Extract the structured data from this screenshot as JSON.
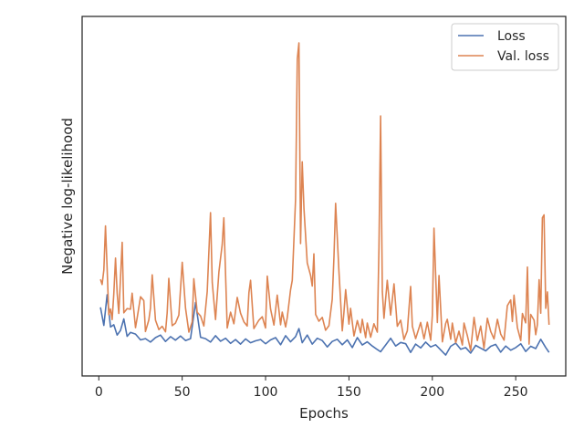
{
  "chart_data": {
    "type": "line",
    "xlabel": "Epochs",
    "ylabel": "Negative log-likelihood",
    "xlim": [
      -10,
      280
    ],
    "ylim": [
      0,
      100
    ],
    "xticks": [
      0,
      50,
      100,
      150,
      200,
      250
    ],
    "yticks_shown": false,
    "grid": false,
    "legend_position": "top-right",
    "series": [
      {
        "name": "Loss",
        "color": "#4c72b0",
        "points": [
          [
            1,
            17.9
          ],
          [
            3,
            12.3
          ],
          [
            5,
            21.8
          ],
          [
            7,
            11.8
          ],
          [
            9,
            12.5
          ],
          [
            11,
            9.3
          ],
          [
            13,
            10.7
          ],
          [
            15,
            14.3
          ],
          [
            17,
            8.9
          ],
          [
            19,
            10.1
          ],
          [
            22,
            9.6
          ],
          [
            25,
            7.8
          ],
          [
            28,
            8.2
          ],
          [
            31,
            7.1
          ],
          [
            34,
            8.5
          ],
          [
            37,
            9.3
          ],
          [
            40,
            7.3
          ],
          [
            43,
            8.8
          ],
          [
            46,
            7.7
          ],
          [
            49,
            9.0
          ],
          [
            52,
            7.6
          ],
          [
            55,
            8.2
          ],
          [
            58,
            19.4
          ],
          [
            61,
            8.6
          ],
          [
            64,
            8.2
          ],
          [
            67,
            7.1
          ],
          [
            70,
            9.1
          ],
          [
            73,
            7.4
          ],
          [
            76,
            8.3
          ],
          [
            79,
            6.7
          ],
          [
            82,
            7.9
          ],
          [
            85,
            6.5
          ],
          [
            88,
            8.1
          ],
          [
            91,
            6.9
          ],
          [
            94,
            7.5
          ],
          [
            97,
            7.9
          ],
          [
            100,
            6.6
          ],
          [
            103,
            7.8
          ],
          [
            106,
            8.5
          ],
          [
            109,
            6.3
          ],
          [
            112,
            9.1
          ],
          [
            115,
            7.2
          ],
          [
            118,
            8.8
          ],
          [
            120,
            11.3
          ],
          [
            122,
            6.9
          ],
          [
            125,
            9.3
          ],
          [
            128,
            6.5
          ],
          [
            131,
            8.3
          ],
          [
            134,
            7.6
          ],
          [
            137,
            5.6
          ],
          [
            140,
            7.3
          ],
          [
            143,
            8.0
          ],
          [
            146,
            6.3
          ],
          [
            149,
            7.8
          ],
          [
            152,
            5.4
          ],
          [
            155,
            8.5
          ],
          [
            158,
            6.2
          ],
          [
            161,
            7.2
          ],
          [
            164,
            5.9
          ],
          [
            167,
            4.8
          ],
          [
            169,
            4.1
          ],
          [
            172,
            6.2
          ],
          [
            175,
            8.3
          ],
          [
            178,
            5.9
          ],
          [
            181,
            7.0
          ],
          [
            184,
            6.6
          ],
          [
            187,
            3.9
          ],
          [
            190,
            6.5
          ],
          [
            193,
            5.3
          ],
          [
            196,
            7.1
          ],
          [
            199,
            5.6
          ],
          [
            202,
            6.3
          ],
          [
            205,
            4.7
          ],
          [
            208,
            3.1
          ],
          [
            211,
            5.8
          ],
          [
            214,
            6.8
          ],
          [
            217,
            4.9
          ],
          [
            220,
            5.4
          ],
          [
            223,
            3.7
          ],
          [
            226,
            6.1
          ],
          [
            229,
            5.2
          ],
          [
            232,
            4.4
          ],
          [
            235,
            5.8
          ],
          [
            238,
            6.4
          ],
          [
            241,
            4.0
          ],
          [
            244,
            5.9
          ],
          [
            247,
            4.6
          ],
          [
            250,
            5.4
          ],
          [
            253,
            6.6
          ],
          [
            256,
            4.2
          ],
          [
            259,
            5.8
          ],
          [
            262,
            5.1
          ],
          [
            265,
            8.0
          ],
          [
            268,
            5.4
          ],
          [
            270,
            3.9
          ]
        ]
      },
      {
        "name": "Val. loss",
        "color": "#dd8452",
        "points": [
          [
            1,
            26.6
          ],
          [
            2,
            25.0
          ],
          [
            3,
            29.5
          ],
          [
            4,
            43.2
          ],
          [
            5,
            30.0
          ],
          [
            6,
            15.6
          ],
          [
            7,
            17.4
          ],
          [
            8,
            14.1
          ],
          [
            9,
            22.0
          ],
          [
            10,
            33.2
          ],
          [
            11,
            22.3
          ],
          [
            12,
            16.0
          ],
          [
            14,
            38.1
          ],
          [
            15,
            16.2
          ],
          [
            17,
            17.5
          ],
          [
            19,
            17.3
          ],
          [
            20,
            22.3
          ],
          [
            22,
            11.6
          ],
          [
            23,
            14.6
          ],
          [
            25,
            21.2
          ],
          [
            27,
            20.0
          ],
          [
            28,
            10.4
          ],
          [
            30,
            14.0
          ],
          [
            31,
            17.7
          ],
          [
            32,
            28.0
          ],
          [
            34,
            13.9
          ],
          [
            36,
            11.0
          ],
          [
            38,
            12.0
          ],
          [
            40,
            10.3
          ],
          [
            41,
            16.2
          ],
          [
            42,
            26.9
          ],
          [
            44,
            12.2
          ],
          [
            46,
            13.0
          ],
          [
            48,
            15.5
          ],
          [
            50,
            31.9
          ],
          [
            52,
            17.7
          ],
          [
            54,
            10.2
          ],
          [
            56,
            13.4
          ],
          [
            57,
            26.8
          ],
          [
            59,
            16.4
          ],
          [
            61,
            15.2
          ],
          [
            63,
            12.1
          ],
          [
            65,
            22.8
          ],
          [
            67,
            47.3
          ],
          [
            68,
            25.6
          ],
          [
            70,
            14.1
          ],
          [
            72,
            28.9
          ],
          [
            74,
            37.4
          ],
          [
            75,
            45.7
          ],
          [
            77,
            11.5
          ],
          [
            79,
            16.4
          ],
          [
            81,
            12.8
          ],
          [
            83,
            21.0
          ],
          [
            85,
            16.1
          ],
          [
            87,
            13.4
          ],
          [
            89,
            12.1
          ],
          [
            90,
            22.5
          ],
          [
            91,
            26.3
          ],
          [
            93,
            11.3
          ],
          [
            96,
            13.9
          ],
          [
            98,
            15.0
          ],
          [
            100,
            11.5
          ],
          [
            101,
            27.6
          ],
          [
            103,
            17.4
          ],
          [
            105,
            12.4
          ],
          [
            107,
            21.7
          ],
          [
            109,
            12.5
          ],
          [
            110,
            16.4
          ],
          [
            112,
            11.8
          ],
          [
            113,
            14.7
          ],
          [
            115,
            23.3
          ],
          [
            116,
            26.3
          ],
          [
            118,
            51.4
          ],
          [
            119,
            95.0
          ],
          [
            120,
            100.0
          ],
          [
            121,
            37.7
          ],
          [
            122,
            63.1
          ],
          [
            123,
            48.6
          ],
          [
            125,
            31.7
          ],
          [
            127,
            27.8
          ],
          [
            128,
            24.5
          ],
          [
            129,
            34.5
          ],
          [
            130,
            15.7
          ],
          [
            132,
            13.6
          ],
          [
            134,
            14.8
          ],
          [
            136,
            10.8
          ],
          [
            138,
            12.2
          ],
          [
            140,
            20.4
          ],
          [
            141,
            33.6
          ],
          [
            142,
            50.2
          ],
          [
            144,
            29.3
          ],
          [
            146,
            10.6
          ],
          [
            147,
            16.3
          ],
          [
            148,
            23.4
          ],
          [
            150,
            12.7
          ],
          [
            151,
            17.6
          ],
          [
            153,
            9.0
          ],
          [
            155,
            13.8
          ],
          [
            157,
            10.0
          ],
          [
            158,
            14.2
          ],
          [
            160,
            8.5
          ],
          [
            161,
            13.0
          ],
          [
            163,
            8.6
          ],
          [
            165,
            12.8
          ],
          [
            167,
            10.2
          ],
          [
            168,
            36.5
          ],
          [
            169,
            77.3
          ],
          [
            170,
            22.9
          ],
          [
            171,
            14.5
          ],
          [
            173,
            26.3
          ],
          [
            175,
            15.5
          ],
          [
            177,
            25.2
          ],
          [
            179,
            12.0
          ],
          [
            181,
            13.9
          ],
          [
            183,
            7.9
          ],
          [
            185,
            10.6
          ],
          [
            187,
            24.4
          ],
          [
            188,
            12.0
          ],
          [
            190,
            8.2
          ],
          [
            192,
            11.5
          ],
          [
            193,
            13.2
          ],
          [
            195,
            8.1
          ],
          [
            197,
            13.3
          ],
          [
            199,
            7.7
          ],
          [
            200,
            15.4
          ],
          [
            201,
            42.5
          ],
          [
            203,
            13.2
          ],
          [
            204,
            27.8
          ],
          [
            206,
            7.2
          ],
          [
            208,
            12.9
          ],
          [
            209,
            14.2
          ],
          [
            211,
            8.0
          ],
          [
            212,
            13.0
          ],
          [
            214,
            6.9
          ],
          [
            216,
            10.5
          ],
          [
            218,
            6.2
          ],
          [
            219,
            13.0
          ],
          [
            221,
            9.1
          ],
          [
            223,
            4.5
          ],
          [
            225,
            14.8
          ],
          [
            227,
            7.6
          ],
          [
            229,
            12.1
          ],
          [
            231,
            5.2
          ],
          [
            233,
            14.5
          ],
          [
            235,
            10.4
          ],
          [
            237,
            8.1
          ],
          [
            239,
            14.2
          ],
          [
            241,
            9.6
          ],
          [
            243,
            7.7
          ],
          [
            245,
            18.4
          ],
          [
            247,
            20.2
          ],
          [
            248,
            13.5
          ],
          [
            249,
            21.7
          ],
          [
            251,
            11.6
          ],
          [
            253,
            7.6
          ],
          [
            254,
            16.0
          ],
          [
            256,
            13.1
          ],
          [
            257,
            30.4
          ],
          [
            258,
            6.5
          ],
          [
            259,
            15.7
          ],
          [
            261,
            13.9
          ],
          [
            262,
            9.4
          ],
          [
            263,
            12.5
          ],
          [
            264,
            26.5
          ],
          [
            265,
            16.1
          ],
          [
            266,
            45.7
          ],
          [
            267,
            46.6
          ],
          [
            268,
            17.6
          ],
          [
            269,
            22.7
          ],
          [
            270,
            12.5
          ]
        ]
      }
    ]
  }
}
